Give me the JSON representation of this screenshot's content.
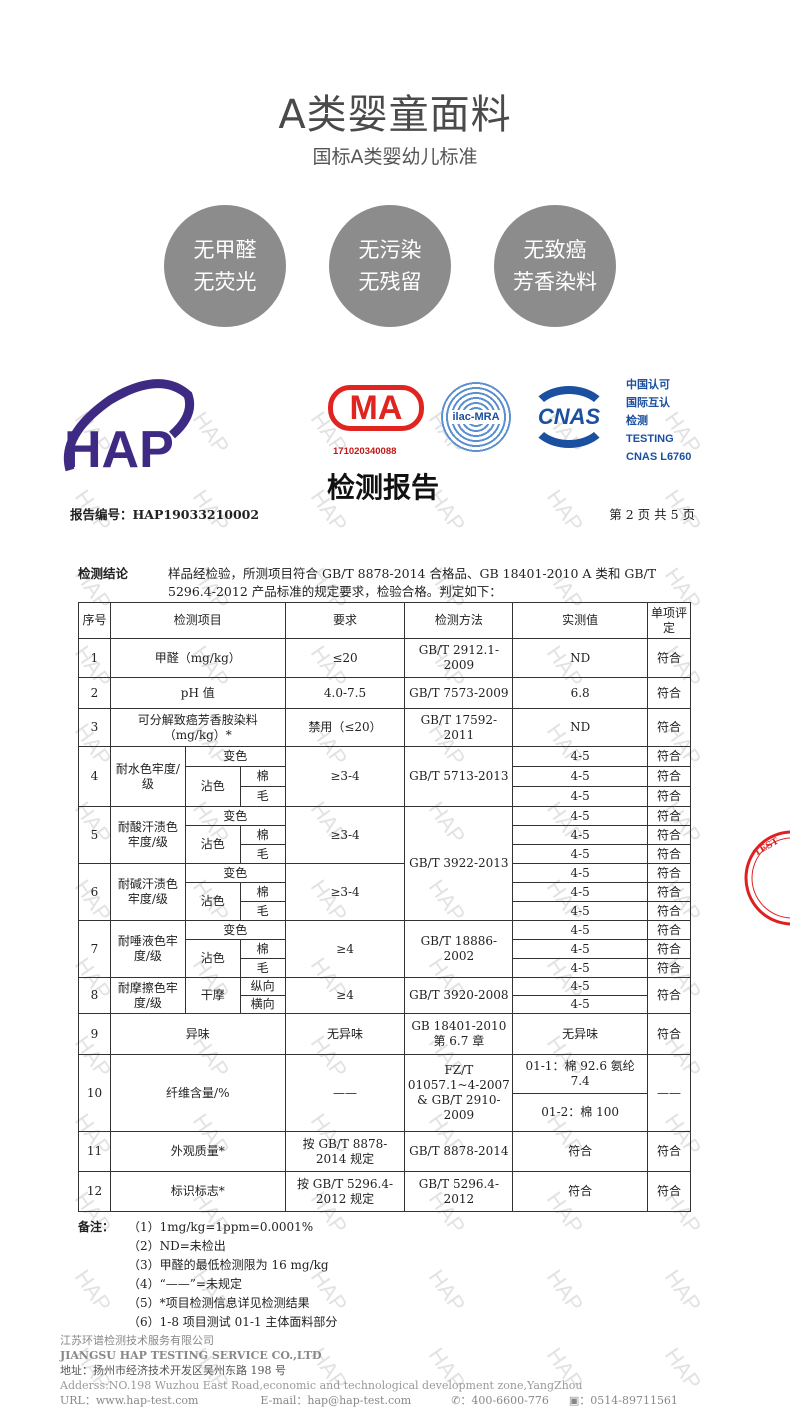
{
  "header": {
    "title": "A类婴童面料",
    "subtitle": "国标A类婴幼儿标准"
  },
  "badges": [
    [
      "无甲醛",
      "无荧光"
    ],
    [
      "无污染",
      "无残留"
    ],
    [
      "无致癌",
      "芳香染料"
    ]
  ],
  "logos": {
    "hap": "HAP",
    "cma": "MA",
    "cma_number": "171020340088",
    "ilac": "ilac-MRA",
    "cnas": "CNAS",
    "cnas_lines": [
      "中国认可",
      "国际互认",
      "检测",
      "TESTING",
      "CNAS L6760"
    ],
    "brand_color": "#3f2a83",
    "cma_color": "#e0241f",
    "cnas_color": "#1b4fa0"
  },
  "watermark": "HAP",
  "report": {
    "title": "检测报告",
    "number_label": "报告编号：HAP19033210002",
    "page": "第 2 页 共 5 页",
    "conclusion_label": "检测结论",
    "conclusion": "样品经检验，所测项目符合 GB/T 8878-2014 合格品、GB 18401-2010 A 类和 GB/T 5296.4-2012 产品标准的规定要求，检验合格。判定如下："
  },
  "table": {
    "headers": [
      "序号",
      "检测项目",
      "要求",
      "检测方法",
      "实测值",
      "单项评定"
    ],
    "r1": [
      "1",
      "甲醛（mg/kg）",
      "≤20",
      "GB/T 2912.1-2009",
      "ND",
      "符合"
    ],
    "r2": [
      "2",
      "pH 值",
      "4.0-7.5",
      "GB/T 7573-2009",
      "6.8",
      "符合"
    ],
    "r3": [
      "3",
      "可分解致癌芳香胺染料（mg/kg）*",
      "禁用（≤20）",
      "GB/T 17592-2011",
      "ND",
      "符合"
    ],
    "sub": {
      "change": "变色",
      "stain": "沾色",
      "cotton": "棉",
      "wool": "毛",
      "dry": "干摩",
      "lon": "纵向",
      "tra": "横向"
    },
    "r4": {
      "no": "4",
      "name": "耐水色牢度/级",
      "req": "≥3-4",
      "method": "GB/T 5713-2013",
      "vals": [
        "4-5",
        "4-5",
        "4-5"
      ],
      "res": [
        "符合",
        "符合",
        "符合"
      ]
    },
    "r5": {
      "no": "5",
      "name": "耐酸汗渍色牢度/级",
      "req": "≥3-4",
      "method": "GB/T 3922-2013",
      "vals": [
        "4-5",
        "4-5",
        "4-5"
      ],
      "res": [
        "符合",
        "符合",
        "符合"
      ]
    },
    "r6": {
      "no": "6",
      "name": "耐碱汗渍色牢度/级",
      "req": "≥3-4",
      "vals": [
        "4-5",
        "4-5",
        "4-5"
      ],
      "res": [
        "符合",
        "符合",
        "符合"
      ]
    },
    "r7": {
      "no": "7",
      "name": "耐唾液色牢度/级",
      "req": "≥4",
      "method": "GB/T 18886-2002",
      "vals": [
        "4-5",
        "4-5",
        "4-5"
      ],
      "res": [
        "符合",
        "符合",
        "符合"
      ]
    },
    "r8": {
      "no": "8",
      "name": "耐摩擦色牢度/级",
      "req": "≥4",
      "method": "GB/T 3920-2008",
      "vals": [
        "4-5",
        "4-5"
      ],
      "res": "符合"
    },
    "r9": [
      "9",
      "异味",
      "无异味",
      "GB 18401-2010 第 6.7 章",
      "无异味",
      "符合"
    ],
    "r10": {
      "no": "10",
      "name": "纤维含量/%",
      "req": "——",
      "method": "FZ/T 01057.1~4-2007 & GB/T 2910-2009",
      "vals": [
        "01-1：棉 92.6 氨纶 7.4",
        "01-2：棉 100"
      ],
      "res": "——"
    },
    "r11": [
      "11",
      "外观质量*",
      "按 GB/T 8878-2014 规定",
      "GB/T 8878-2014",
      "符合",
      "符合"
    ],
    "r12": [
      "12",
      "标识标志*",
      "按 GB/T 5296.4-2012 规定",
      "GB/T 5296.4-2012",
      "符合",
      "符合"
    ]
  },
  "notes": {
    "label": "备注：",
    "items": [
      "（1）1mg/kg=1ppm=0.0001%",
      "（2）ND=未检出",
      "（3）甲醛的最低检测限为 16 mg/kg",
      "（4）“——”=未规定",
      "（5）*项目检测信息详见检测结果",
      "（6）1-8 项目测试 01-1 主体面料部分"
    ]
  },
  "footer": {
    "company_cn": "江苏环谱检测技术服务有限公司",
    "company_en": "JIANGSU HAP TESTING SERVICE CO.,LTD",
    "address_cn": "地址：扬州市经济技术开发区吴州东路 198 号",
    "address_en": "Adderss:NO.198 Wuzhou East Road,economic and technological development zone,YangZhou",
    "url": "URL：www.hap-test.com",
    "email": "E-mail：hap@hap-test.com",
    "phone": "：400-6600-776",
    "fax": "：0514-89711561"
  },
  "stamp": "TEST"
}
